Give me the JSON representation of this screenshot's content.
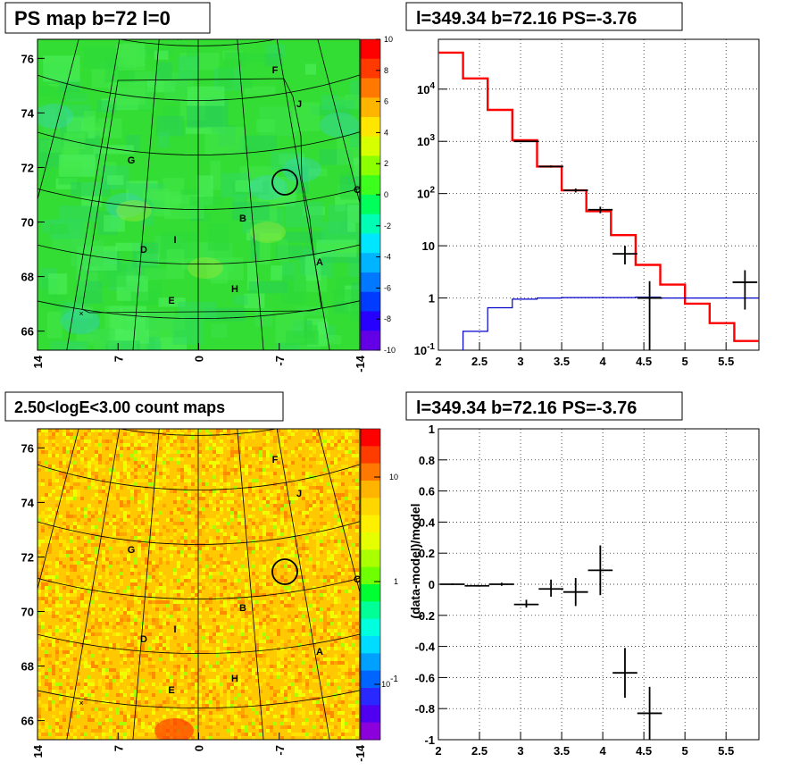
{
  "chart_data": [
    {
      "type": "heatmap",
      "title": "PS map b=72 l=0",
      "x_ticks": [
        "14",
        "7",
        "0",
        "-7",
        "-14"
      ],
      "y_ticks": [
        "66",
        "68",
        "70",
        "72",
        "74",
        "76"
      ],
      "xlim": [
        14,
        -14
      ],
      "ylim": [
        65.3,
        76.7
      ],
      "colorbar": {
        "ticks": [
          "10",
          "8",
          "6",
          "4",
          "2",
          "0",
          "-2",
          "-4",
          "-6",
          "-8",
          "-10"
        ],
        "range": [
          -10,
          10
        ]
      },
      "region_labels": [
        "F",
        "J",
        "G",
        "C",
        "B",
        "I",
        "D",
        "A",
        "H",
        "E"
      ],
      "source_circle": {
        "l": -6.8,
        "b": 71.5
      },
      "background_color": "#33dd33"
    },
    {
      "type": "line",
      "title": "l=349.34 b=72.16 PS=-3.76",
      "y_scale": "log",
      "xlim": [
        2,
        5.9
      ],
      "ylim": [
        0.1,
        90000
      ],
      "x_ticks": [
        "2",
        "2.5",
        "3",
        "3.5",
        "4",
        "4.5",
        "5",
        "5.5"
      ],
      "y_ticks": [
        "10^-1",
        "1",
        "10",
        "10^2",
        "10^3",
        "10^4"
      ],
      "red_edges": [
        2.0,
        2.3,
        2.6,
        2.9,
        3.2,
        3.5,
        3.8,
        4.1,
        4.4,
        4.7,
        5.0,
        5.3,
        5.6,
        5.9
      ],
      "red_values": [
        50000,
        16000,
        4000,
        1050,
        330,
        115,
        46,
        16,
        4.3,
        1.8,
        0.78,
        0.33,
        0.15
      ],
      "blue_edges": [
        2.3,
        2.6,
        2.9,
        3.2,
        3.5,
        3.8,
        4.1,
        4.4,
        4.7,
        5.0,
        5.3,
        5.6,
        5.9
      ],
      "blue_values": [
        0.23,
        0.65,
        0.95,
        1.0,
        1.02,
        1.02,
        1.02,
        1.04,
        1.0,
        1.0,
        1.0,
        1.0
      ],
      "points": [
        {
          "x": 3.07,
          "y": 1000,
          "xerr": 0.15,
          "ylo": 970,
          "yhi": 1030
        },
        {
          "x": 3.37,
          "y": 330,
          "xerr": 0.15,
          "ylo": 315,
          "yhi": 345
        },
        {
          "x": 3.67,
          "y": 115,
          "xerr": 0.15,
          "ylo": 105,
          "yhi": 125
        },
        {
          "x": 3.97,
          "y": 49,
          "xerr": 0.15,
          "ylo": 42,
          "yhi": 56
        },
        {
          "x": 4.27,
          "y": 7,
          "xerr": 0.15,
          "ylo": 4.4,
          "yhi": 10
        },
        {
          "x": 4.57,
          "y": 1,
          "xerr": 0.15,
          "ylo": 0.1,
          "yhi": 2.1
        },
        {
          "x": 5.73,
          "y": 2,
          "xerr": 0.15,
          "ylo": 0.6,
          "yhi": 3.4
        }
      ]
    },
    {
      "type": "heatmap",
      "title": "2.50<logE<3.00 count maps",
      "x_ticks": [
        "14",
        "7",
        "0",
        "-7",
        "-14"
      ],
      "y_ticks": [
        "66",
        "68",
        "70",
        "72",
        "74",
        "76"
      ],
      "xlim": [
        14,
        -14
      ],
      "ylim": [
        65.3,
        76.7
      ],
      "colorbar": {
        "ticks": [
          "10",
          "1",
          "10^-1"
        ],
        "scale": "log"
      },
      "region_labels": [
        "F",
        "J",
        "G",
        "C",
        "B",
        "I",
        "D",
        "A",
        "H",
        "E"
      ],
      "source_circle": {
        "l": -6.8,
        "b": 71.5
      },
      "palette": [
        "#ffc800",
        "#ffe100",
        "#f0ff00",
        "#ffa500",
        "#ff8c00",
        "#aaff00"
      ]
    },
    {
      "type": "scatter",
      "title": "l=349.34 b=72.16 PS=-3.76",
      "ylabel": "(data-model)/model",
      "xlim": [
        2,
        5.9
      ],
      "ylim": [
        -1,
        1
      ],
      "x_ticks": [
        "2",
        "2.5",
        "3",
        "3.5",
        "4",
        "4.5",
        "5",
        "5.5"
      ],
      "y_ticks": [
        "-1",
        "-0.8",
        "-0.6",
        "-0.4",
        "-0.2",
        "0",
        "0.2",
        "0.4",
        "0.6",
        "0.8",
        "1"
      ],
      "points": [
        {
          "x": 2.17,
          "y": 0.0,
          "xerr": 0.15,
          "ylo": -0.005,
          "yhi": 0.005
        },
        {
          "x": 2.47,
          "y": -0.01,
          "xerr": 0.15,
          "ylo": -0.015,
          "yhi": -0.005
        },
        {
          "x": 2.77,
          "y": 0.0,
          "xerr": 0.15,
          "ylo": -0.01,
          "yhi": 0.01
        },
        {
          "x": 3.07,
          "y": -0.13,
          "xerr": 0.15,
          "ylo": -0.15,
          "yhi": -0.1
        },
        {
          "x": 3.37,
          "y": -0.03,
          "xerr": 0.15,
          "ylo": -0.08,
          "yhi": 0.03
        },
        {
          "x": 3.67,
          "y": -0.05,
          "xerr": 0.15,
          "ylo": -0.14,
          "yhi": 0.04
        },
        {
          "x": 3.97,
          "y": 0.09,
          "xerr": 0.15,
          "ylo": -0.07,
          "yhi": 0.25
        },
        {
          "x": 4.27,
          "y": -0.57,
          "xerr": 0.15,
          "ylo": -0.73,
          "yhi": -0.41
        },
        {
          "x": 4.57,
          "y": -0.83,
          "xerr": 0.15,
          "ylo": -1.0,
          "yhi": -0.66
        }
      ]
    }
  ]
}
